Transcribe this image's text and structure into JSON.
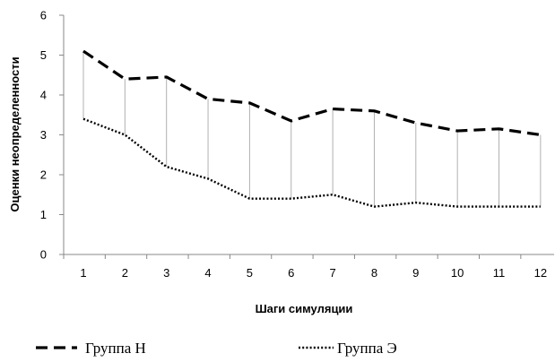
{
  "chart_data": {
    "type": "line",
    "xlabel": "Шаги симуляции",
    "ylabel": "Оценки неопределенности",
    "x": [
      1,
      2,
      3,
      4,
      5,
      6,
      7,
      8,
      9,
      10,
      11,
      12
    ],
    "ylim": [
      0,
      6
    ],
    "yticks": [
      0,
      1,
      2,
      3,
      4,
      5,
      6
    ],
    "grid": false,
    "drop_lines": true,
    "legend_position": "bottom",
    "series": [
      {
        "name": "Группа Н",
        "style": "dashed",
        "color": "#000000",
        "values": [
          5.1,
          4.4,
          4.45,
          3.9,
          3.8,
          3.35,
          3.65,
          3.6,
          3.3,
          3.1,
          3.15,
          3.0
        ]
      },
      {
        "name": "Группа Э",
        "style": "dotted",
        "color": "#000000",
        "values": [
          3.4,
          3.0,
          2.2,
          1.9,
          1.4,
          1.4,
          1.5,
          1.2,
          1.3,
          1.2,
          1.2,
          1.2
        ]
      }
    ],
    "colors": {
      "axis": "#888888",
      "drop_line": "#b0b0b0"
    }
  }
}
